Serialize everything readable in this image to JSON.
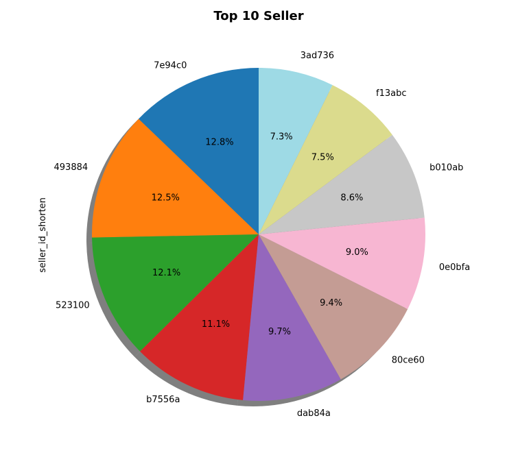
{
  "chart_data": {
    "type": "pie",
    "title": "Top 10 Seller",
    "ylabel": "seller_id_shorten",
    "categories": [
      "7e94c0",
      "493884",
      "523100",
      "b7556a",
      "dab84a",
      "80ce60",
      "0e0bfa",
      "b010ab",
      "f13abc",
      "3ad736"
    ],
    "values": [
      12.8,
      12.5,
      12.1,
      11.1,
      9.7,
      9.4,
      9.0,
      8.6,
      7.5,
      7.3
    ],
    "percent_labels": [
      "12.8%",
      "12.5%",
      "12.1%",
      "11.1%",
      "9.7%",
      "9.4%",
      "9.0%",
      "8.6%",
      "7.5%",
      "7.3%"
    ],
    "colors": [
      "#1f77b4",
      "#ff7f0e",
      "#2ca02c",
      "#d62728",
      "#9467bd",
      "#c49c94",
      "#f7b6d2",
      "#c7c7c7",
      "#dbdb8d",
      "#9edae5"
    ],
    "start_angle_deg": 90,
    "direction": "counterclockwise",
    "shadow": true
  }
}
